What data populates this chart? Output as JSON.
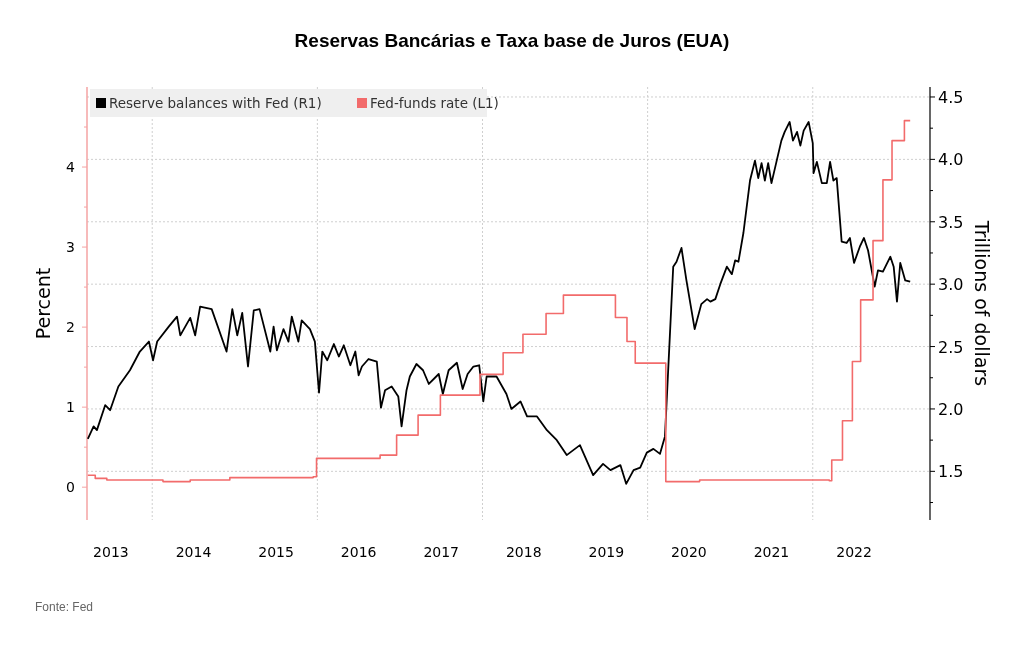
{
  "chart_data": {
    "type": "line",
    "title": "Reservas Bancárias e Taxa base de Juros (EUA)",
    "ylabel": "Percent",
    "y2label": "Trillions of dollars",
    "annotations": [
      "Fonte: Fed"
    ],
    "xlim": [
      2013.21,
      2023.42
    ],
    "xticks": [
      {
        "value": 2013.5,
        "label": "2013"
      },
      {
        "value": 2014,
        "label": null
      },
      {
        "value": 2014.5,
        "label": "2014"
      },
      {
        "value": 2015.5,
        "label": "2015"
      },
      {
        "value": 2016,
        "label": null
      },
      {
        "value": 2016.5,
        "label": "2016"
      },
      {
        "value": 2017.5,
        "label": "2017"
      },
      {
        "value": 2018,
        "label": null
      },
      {
        "value": 2018.5,
        "label": "2018"
      },
      {
        "value": 2019.5,
        "label": "2019"
      },
      {
        "value": 2020,
        "label": null
      },
      {
        "value": 2020.5,
        "label": "2020"
      },
      {
        "value": 2021.5,
        "label": "2021"
      },
      {
        "value": 2022,
        "label": null
      },
      {
        "value": 2022.5,
        "label": "2022"
      }
    ],
    "ylim": [
      -0.41,
      5.0
    ],
    "yticks": [
      0,
      {
        "value": 0.5,
        "label": null
      },
      1,
      {
        "value": 1.5,
        "label": null
      },
      2,
      {
        "value": 2.5,
        "label": null
      },
      3,
      {
        "value": 3.5,
        "label": null
      },
      4,
      {
        "value": 4.5,
        "label": null
      }
    ],
    "y2lim": [
      1.11,
      4.58
    ],
    "y2ticks": [
      {
        "value": 1.25,
        "label": null
      },
      1.5,
      {
        "value": 1.75,
        "label": null
      },
      {
        "value": 2,
        "label": "2.0"
      },
      {
        "value": 2.25,
        "label": null
      },
      2.5,
      {
        "value": 2.75,
        "label": null
      },
      {
        "value": 3,
        "label": "3.0"
      },
      {
        "value": 3.25,
        "label": null
      },
      3.5,
      {
        "value": 3.75,
        "label": null
      },
      {
        "value": 4,
        "label": "4.0"
      },
      {
        "value": 4.25,
        "label": null
      },
      4.5
    ],
    "grid": true,
    "legend": "top left",
    "series": [
      {
        "name": "Reserve balances with Fed (R1)",
        "color": "#000000",
        "axis": "y2",
        "x": [
          2013.22,
          2013.29,
          2013.33,
          2013.43,
          2013.49,
          2013.59,
          2013.73,
          2013.85,
          2013.96,
          2014.01,
          2014.06,
          2014.2,
          2014.3,
          2014.34,
          2014.46,
          2014.52,
          2014.58,
          2014.72,
          2014.9,
          2014.97,
          2015.03,
          2015.09,
          2015.16,
          2015.23,
          2015.3,
          2015.43,
          2015.47,
          2015.51,
          2015.59,
          2015.65,
          2015.69,
          2015.77,
          2015.81,
          2015.91,
          2015.97,
          2016.02,
          2016.06,
          2016.12,
          2016.2,
          2016.26,
          2016.32,
          2016.4,
          2016.46,
          2016.5,
          2016.54,
          2016.62,
          2016.72,
          2016.77,
          2016.82,
          2016.9,
          2016.98,
          2017.02,
          2017.08,
          2017.12,
          2017.2,
          2017.28,
          2017.35,
          2017.47,
          2017.52,
          2017.59,
          2017.69,
          2017.76,
          2017.82,
          2017.89,
          2017.96,
          2018.01,
          2018.05,
          2018.17,
          2018.29,
          2018.35,
          2018.46,
          2018.54,
          2018.66,
          2018.78,
          2018.9,
          2019.02,
          2019.18,
          2019.34,
          2019.46,
          2019.55,
          2019.67,
          2019.74,
          2019.83,
          2019.91,
          2019.99,
          2020.07,
          2020.15,
          2020.21,
          2020.31,
          2020.35,
          2020.41,
          2020.47,
          2020.57,
          2020.65,
          2020.72,
          2020.76,
          2020.82,
          2020.88,
          2020.96,
          2021.02,
          2021.06,
          2021.1,
          2021.16,
          2021.24,
          2021.3,
          2021.34,
          2021.38,
          2021.42,
          2021.46,
          2021.5,
          2021.56,
          2021.62,
          2021.66,
          2021.72,
          2021.76,
          2021.81,
          2021.85,
          2021.89,
          2021.95,
          2022.0,
          2022.01,
          2022.05,
          2022.11,
          2022.17,
          2022.21,
          2022.25,
          2022.29,
          2022.35,
          2022.41,
          2022.45,
          2022.5,
          2022.57,
          2022.62,
          2022.67,
          2022.75,
          2022.79,
          2022.85,
          2022.94,
          2022.98,
          2023.02,
          2023.06,
          2023.12,
          2023.18
        ],
        "values": [
          1.76,
          1.86,
          1.83,
          2.03,
          1.99,
          2.18,
          2.31,
          2.46,
          2.54,
          2.39,
          2.54,
          2.66,
          2.74,
          2.59,
          2.73,
          2.59,
          2.82,
          2.8,
          2.46,
          2.8,
          2.59,
          2.77,
          2.34,
          2.79,
          2.8,
          2.46,
          2.66,
          2.47,
          2.64,
          2.54,
          2.74,
          2.54,
          2.71,
          2.64,
          2.54,
          2.13,
          2.46,
          2.39,
          2.52,
          2.42,
          2.51,
          2.35,
          2.46,
          2.27,
          2.34,
          2.4,
          2.38,
          2.01,
          2.15,
          2.18,
          2.1,
          1.86,
          2.15,
          2.26,
          2.36,
          2.31,
          2.2,
          2.28,
          2.12,
          2.31,
          2.37,
          2.16,
          2.28,
          2.34,
          2.35,
          2.06,
          2.26,
          2.26,
          2.12,
          2.0,
          2.06,
          1.94,
          1.94,
          1.83,
          1.75,
          1.63,
          1.71,
          1.47,
          1.56,
          1.51,
          1.55,
          1.4,
          1.51,
          1.53,
          1.65,
          1.68,
          1.64,
          1.78,
          3.14,
          3.18,
          3.29,
          3.03,
          2.64,
          2.84,
          2.88,
          2.86,
          2.88,
          3.0,
          3.14,
          3.08,
          3.19,
          3.18,
          3.41,
          3.83,
          3.99,
          3.85,
          3.97,
          3.83,
          3.97,
          3.81,
          3.98,
          4.15,
          4.22,
          4.3,
          4.15,
          4.22,
          4.11,
          4.23,
          4.3,
          4.13,
          3.89,
          3.98,
          3.81,
          3.81,
          3.98,
          3.83,
          3.85,
          3.34,
          3.33,
          3.37,
          3.17,
          3.3,
          3.37,
          3.27,
          2.98,
          3.11,
          3.1,
          3.22,
          3.14,
          2.86,
          3.17,
          3.03,
          3.02
        ]
      },
      {
        "name": "Fed-funds rate (L1)",
        "color": "#f26b6b",
        "type": "step",
        "x": [
          2013.22,
          2013.31,
          2013.45,
          2014.13,
          2014.46,
          2014.94,
          2015.95,
          2015.99,
          2016.76,
          2016.96,
          2017.22,
          2017.49,
          2017.97,
          2018.25,
          2018.49,
          2018.77,
          2018.98,
          2019.58,
          2019.61,
          2019.75,
          2019.85,
          2020.17,
          2020.22,
          2020.63,
          2022.2,
          2022.23,
          2022.36,
          2022.48,
          2022.58,
          2022.73,
          2022.85,
          2022.96,
          2023.11,
          2023.18
        ],
        "values": [
          0.15,
          0.11,
          0.09,
          0.07,
          0.09,
          0.12,
          0.13,
          0.36,
          0.4,
          0.65,
          0.9,
          1.15,
          1.41,
          1.68,
          1.91,
          2.17,
          2.4,
          2.4,
          2.12,
          1.82,
          1.55,
          1.55,
          0.07,
          0.09,
          0.08,
          0.34,
          0.83,
          1.57,
          2.34,
          3.08,
          3.84,
          4.33,
          4.58,
          4.58
        ]
      }
    ]
  }
}
